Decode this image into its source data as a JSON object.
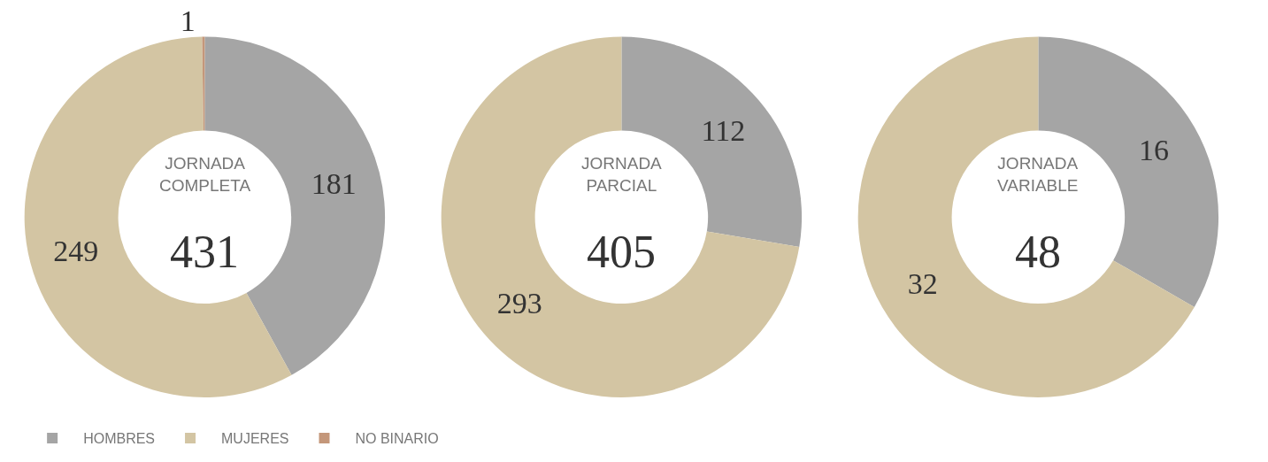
{
  "chart_data": [
    {
      "type": "donut",
      "title": "JORNADA COMPLETA",
      "subtitle": "431",
      "categories": [
        "HOMBRES",
        "MUJERES",
        "NO BINARIO"
      ],
      "values": [
        181,
        249,
        1
      ],
      "colors": [
        "#a5a5a5",
        "#d3c5a3",
        "#c4977a"
      ],
      "data_labels": true,
      "legend": "bottom"
    },
    {
      "type": "donut",
      "title": "JORNADA PARCIAL",
      "subtitle": "405",
      "categories": [
        null,
        null
      ],
      "values": [
        112,
        293
      ],
      "colors": [
        "#a5a5a5",
        "#d3c5a3"
      ],
      "data_labels": true
    },
    {
      "type": "donut",
      "title": "JORNADA VARIABLE",
      "subtitle": "48",
      "categories": [
        null,
        null
      ],
      "values": [
        16,
        32
      ],
      "colors": [
        "#a5a5a5",
        "#d3c5a3"
      ],
      "data_labels": true
    }
  ]
}
